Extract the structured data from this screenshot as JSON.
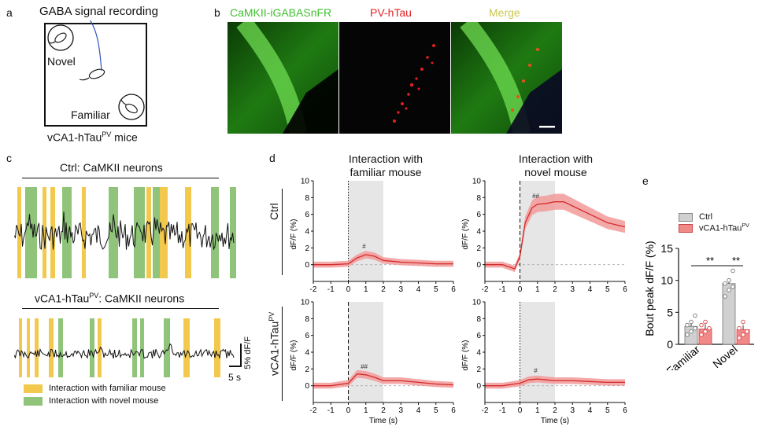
{
  "panels": {
    "a": {
      "letter": "a",
      "title": "GABA signal recording",
      "novel": "Novel",
      "familiar": "Familiar",
      "caption_pre": "vCA1-hTau",
      "caption_sup": "PV",
      "caption_post": " mice"
    },
    "b": {
      "letter": "b",
      "labels": [
        "CaMKII-iGABASnFR",
        "PV-hTau",
        "Merge"
      ],
      "label_colors": [
        "#3fbf2f",
        "#e52222",
        "#c9c94a"
      ]
    },
    "c": {
      "letter": "c",
      "title_ctrl": "Ctrl: CaMKII neurons",
      "title_htau_pre": "vCA1-hTau",
      "title_htau_sup": "PV",
      "title_htau_post": ": CaMKII neurons",
      "scale_y": "5% dF/F",
      "scale_x": "5 s",
      "legend_familiar": "Interaction with familiar mouse",
      "legend_novel": "Interaction with novel mouse",
      "color_familiar": "#f2c94c",
      "color_novel": "#8fc47a"
    },
    "d": {
      "letter": "d",
      "col_title_familiar": [
        "Interaction with",
        "familiar mouse"
      ],
      "col_title_novel": [
        "Interaction with",
        "novel mouse"
      ],
      "row_ctrl": "Ctrl",
      "row_htau_pre": "vCA1-hTau",
      "row_htau_sup": "PV",
      "ylabel": "dF/F (%)",
      "xlabel": "Time (s)",
      "xticks": [
        "-2",
        "-1",
        "0",
        "1",
        "2",
        "3",
        "4",
        "5",
        "6"
      ],
      "yticks": [
        "0",
        "2",
        "4",
        "6",
        "8",
        "10"
      ],
      "marks": {
        "ctrl_familiar": "#",
        "ctrl_novel": "##",
        "htau_familiar": "##",
        "htau_novel": "#"
      }
    },
    "e": {
      "letter": "e",
      "ylabel": "Bout peak dF/F (%)",
      "yticks": [
        "0",
        "5",
        "10",
        "15"
      ],
      "legend_ctrl": "Ctrl",
      "legend_htau_pre": "vCA1-hTau",
      "legend_htau_sup": "PV",
      "sig": [
        "**",
        "**"
      ],
      "color_ctrl": "#d0d0d0",
      "color_htau": "#f08a8a"
    }
  },
  "chart_data": [
    {
      "type": "line",
      "ylabel": "dF/F (%)",
      "xlabel": "Time (s)",
      "xlim": [
        -2,
        6
      ],
      "ylim": [
        -2,
        10
      ],
      "series": [
        {
          "name": "Ctrl",
          "x": [
            -2,
            -1,
            0,
            0.5,
            1,
            1.5,
            2,
            3,
            4,
            5,
            6
          ],
          "values": [
            0,
            0,
            0.1,
            0.8,
            1.2,
            1.0,
            0.5,
            0.3,
            0.2,
            0.1,
            0.1
          ]
        }
      ]
    },
    {
      "type": "line",
      "ylabel": "dF/F (%)",
      "xlabel": "Time (s)",
      "xlim": [
        -2,
        6
      ],
      "ylim": [
        -2,
        10
      ],
      "series": [
        {
          "name": "Ctrl",
          "x": [
            -2,
            -1,
            -0.3,
            0,
            0.3,
            0.7,
            1,
            1.5,
            2,
            2.5,
            3,
            4,
            5,
            6
          ],
          "values": [
            0,
            0,
            -0.5,
            1,
            5,
            6.8,
            7.2,
            7.3,
            7.5,
            7.5,
            7.0,
            6.0,
            5.0,
            4.5
          ]
        }
      ]
    },
    {
      "type": "line",
      "ylabel": "dF/F (%)",
      "xlabel": "Time (s)",
      "xlim": [
        -2,
        6
      ],
      "ylim": [
        -2,
        10
      ],
      "series": [
        {
          "name": "vCA1-hTauPV",
          "x": [
            -2,
            -1,
            0,
            0.5,
            1,
            1.5,
            2,
            3,
            4,
            5,
            6
          ],
          "values": [
            0,
            0,
            0.3,
            1.4,
            1.3,
            1.0,
            0.6,
            0.6,
            0.4,
            0.2,
            0.1
          ]
        }
      ]
    },
    {
      "type": "line",
      "ylabel": "dF/F (%)",
      "xlabel": "Time (s)",
      "xlim": [
        -2,
        6
      ],
      "ylim": [
        -2,
        10
      ],
      "series": [
        {
          "name": "vCA1-hTauPV",
          "x": [
            -2,
            -1,
            0,
            0.5,
            1,
            1.5,
            2,
            3,
            4,
            5,
            6
          ],
          "values": [
            0,
            0,
            0.3,
            0.7,
            0.8,
            0.7,
            0.6,
            0.6,
            0.5,
            0.4,
            0.4
          ]
        }
      ]
    },
    {
      "type": "bar",
      "ylabel": "Bout peak dF/F (%)",
      "categories": [
        "Familiar",
        "Novel"
      ],
      "ylim": [
        0,
        15
      ],
      "series": [
        {
          "name": "Ctrl",
          "values": [
            2.8,
            9.5
          ],
          "points": [
            [
              1.5,
              2,
              2.5,
              3,
              3.5,
              4.5
            ],
            [
              7.5,
              8.5,
              9,
              9.5,
              10,
              11.5
            ]
          ]
        },
        {
          "name": "vCA1-hTauPV",
          "values": [
            2.4,
            2.3
          ],
          "points": [
            [
              1.5,
              2,
              2.5,
              3,
              3.5
            ],
            [
              1,
              1.5,
              2,
              2.5,
              3.5
            ]
          ]
        }
      ]
    }
  ]
}
